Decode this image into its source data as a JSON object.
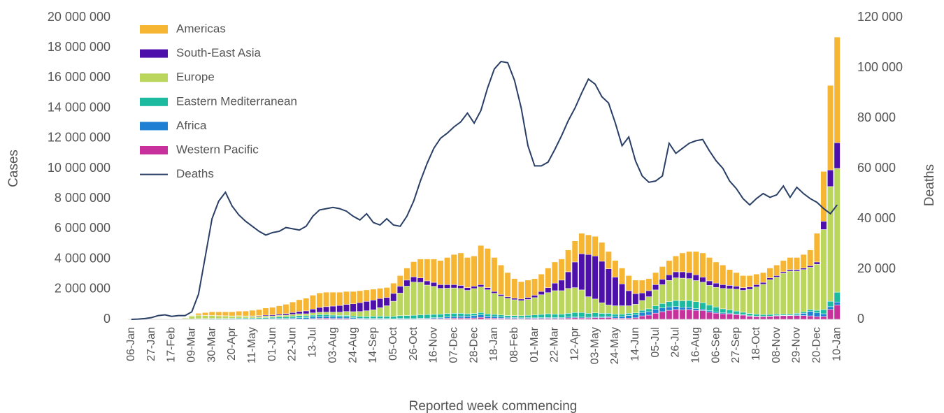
{
  "chart_data": {
    "type": "bar",
    "x_label": "Reported week commencing",
    "y_label": "Cases",
    "y2_label": "Deaths",
    "legend": "upper left",
    "categories": [
      "06-Jan",
      null,
      null,
      "27-Jan",
      null,
      null,
      "17-Feb",
      null,
      null,
      "09-Mar",
      null,
      null,
      "30-Mar",
      null,
      null,
      "20-Apr",
      null,
      null,
      "11-May",
      null,
      null,
      "01-Jun",
      null,
      null,
      "22-Jun",
      null,
      null,
      "13-Jul",
      null,
      null,
      "03-Aug",
      null,
      null,
      "24-Aug",
      null,
      null,
      "14-Sep",
      null,
      null,
      "05-Oct",
      null,
      null,
      "26-Oct",
      null,
      null,
      "16-Nov",
      null,
      null,
      "07-Dec",
      null,
      null,
      "28-Dec",
      null,
      null,
      "18-Jan",
      null,
      null,
      "08-Feb",
      null,
      null,
      "01-Mar",
      null,
      null,
      "22-Mar",
      null,
      null,
      "12-Apr",
      null,
      null,
      "03-May",
      null,
      null,
      "24-May",
      null,
      null,
      "14-Jun",
      null,
      null,
      "05-Jul",
      null,
      null,
      "26-Jul",
      null,
      null,
      "16-Aug",
      null,
      null,
      "06-Sep",
      null,
      null,
      "27-Sep",
      null,
      null,
      "18-Oct",
      null,
      null,
      "08-Nov",
      null,
      null,
      "29-Nov",
      null,
      null,
      "20-Dec",
      null,
      null,
      "10-Jan"
    ],
    "ylim": [
      0,
      20000000
    ],
    "yticks": [
      0,
      {
        "value": 2000000,
        "label": "2 000 000"
      },
      {
        "value": 4000000,
        "label": "4 000 000"
      },
      {
        "value": 6000000,
        "label": "6 000 000"
      },
      {
        "value": 8000000,
        "label": "8 000 000"
      },
      {
        "value": 10000000,
        "label": "10 000 000"
      },
      {
        "value": 12000000,
        "label": "12 000 000"
      },
      {
        "value": 14000000,
        "label": "14 000 000"
      },
      {
        "value": 16000000,
        "label": "16 000 000"
      },
      {
        "value": 18000000,
        "label": "18 000 000"
      },
      {
        "value": 20000000,
        "label": "20 000 000"
      }
    ],
    "y2lim": [
      0,
      120000
    ],
    "y2ticks": [
      0,
      {
        "value": 20000,
        "label": "20 000"
      },
      {
        "value": 40000,
        "label": "40 000"
      },
      {
        "value": 60000,
        "label": "60 000"
      },
      {
        "value": 80000,
        "label": "80 000"
      },
      {
        "value": 100000,
        "label": "100 000"
      },
      {
        "value": 120000,
        "label": "120 000"
      }
    ],
    "series": [
      {
        "name": "Americas",
        "color": "#f6b532",
        "values": [
          0,
          0,
          0,
          0,
          0,
          0,
          0,
          0,
          10000,
          40000,
          120000,
          180000,
          230000,
          250000,
          260000,
          270000,
          300000,
          320000,
          370000,
          400000,
          470000,
          500000,
          560000,
          620000,
          700000,
          780000,
          840000,
          920000,
          960000,
          960000,
          920000,
          880000,
          860000,
          820000,
          800000,
          760000,
          720000,
          680000,
          660000,
          680000,
          700000,
          800000,
          1000000,
          1250000,
          1450000,
          1550000,
          1600000,
          1800000,
          2000000,
          2150000,
          2000000,
          2000000,
          2600000,
          2600000,
          2250000,
          1950000,
          1600000,
          1300000,
          1150000,
          1150000,
          1100000,
          1150000,
          1300000,
          1400000,
          1400000,
          1450000,
          1400000,
          1350000,
          1300000,
          1300000,
          1250000,
          1150000,
          1100000,
          1050000,
          1000000,
          900000,
          850000,
          800000,
          800000,
          850000,
          950000,
          1050000,
          1250000,
          1400000,
          1550000,
          1600000,
          1550000,
          1400000,
          1300000,
          1050000,
          900000,
          800000,
          750000,
          700000,
          650000,
          650000,
          700000,
          750000,
          800000,
          800000,
          900000,
          1050000,
          1900000,
          3300000,
          5600000,
          7000000
        ]
      },
      {
        "name": "South-East Asia",
        "color": "#4d10ab",
        "values": [
          0,
          0,
          0,
          0,
          0,
          0,
          0,
          0,
          0,
          0,
          5000,
          10000,
          10000,
          15000,
          15000,
          20000,
          25000,
          30000,
          40000,
          50000,
          60000,
          70000,
          80000,
          100000,
          120000,
          150000,
          190000,
          250000,
          320000,
          360000,
          400000,
          440000,
          470000,
          520000,
          580000,
          620000,
          650000,
          610000,
          550000,
          520000,
          460000,
          400000,
          350000,
          300000,
          280000,
          260000,
          250000,
          240000,
          220000,
          200000,
          180000,
          160000,
          150000,
          140000,
          120000,
          110000,
          100000,
          100000,
          110000,
          130000,
          160000,
          220000,
          330000,
          500000,
          700000,
          1100000,
          1700000,
          2400000,
          2800000,
          2850000,
          2750000,
          2400000,
          1900000,
          1450000,
          1000000,
          700000,
          500000,
          400000,
          350000,
          350000,
          370000,
          400000,
          420000,
          400000,
          380000,
          340000,
          300000,
          280000,
          250000,
          220000,
          200000,
          180000,
          160000,
          150000,
          130000,
          120000,
          100000,
          100000,
          100000,
          100000,
          100000,
          100000,
          150000,
          550000,
          1100000,
          1700000
        ]
      },
      {
        "name": "Europe",
        "color": "#bad65c",
        "values": [
          0,
          0,
          0,
          0,
          0,
          0,
          0,
          5000,
          60000,
          180000,
          230000,
          210000,
          200000,
          180000,
          160000,
          140000,
          130000,
          110000,
          100000,
          100000,
          100000,
          90000,
          100000,
          110000,
          120000,
          130000,
          140000,
          150000,
          160000,
          170000,
          200000,
          220000,
          260000,
          290000,
          320000,
          380000,
          430000,
          560000,
          700000,
          1000000,
          1500000,
          1950000,
          2200000,
          2150000,
          1950000,
          1860000,
          1700000,
          1680000,
          1680000,
          1650000,
          1550000,
          1650000,
          1700000,
          1600000,
          1400000,
          1250000,
          1150000,
          1050000,
          1000000,
          1050000,
          1150000,
          1300000,
          1400000,
          1550000,
          1550000,
          1650000,
          1650000,
          1500000,
          1100000,
          920000,
          700000,
          550000,
          550000,
          550000,
          500000,
          570000,
          650000,
          800000,
          1050000,
          1250000,
          1400000,
          1500000,
          1500000,
          1450000,
          1400000,
          1350000,
          1300000,
          1300000,
          1350000,
          1400000,
          1450000,
          1450000,
          1600000,
          1800000,
          2000000,
          2300000,
          2450000,
          2700000,
          2850000,
          2800000,
          2800000,
          2800000,
          3050000,
          5300000,
          7600000,
          8200000
        ]
      },
      {
        "name": "Eastern Mediterranean",
        "color": "#1cbba0",
        "values": [
          0,
          0,
          0,
          0,
          0,
          0,
          0,
          5000,
          20000,
          20000,
          25000,
          30000,
          40000,
          40000,
          45000,
          50000,
          60000,
          65000,
          65000,
          70000,
          80000,
          90000,
          100000,
          110000,
          120000,
          130000,
          120000,
          120000,
          120000,
          110000,
          110000,
          100000,
          110000,
          110000,
          120000,
          130000,
          140000,
          150000,
          150000,
          160000,
          180000,
          200000,
          220000,
          230000,
          240000,
          220000,
          230000,
          220000,
          220000,
          190000,
          160000,
          150000,
          150000,
          150000,
          140000,
          130000,
          120000,
          130000,
          140000,
          160000,
          190000,
          220000,
          250000,
          240000,
          230000,
          250000,
          290000,
          300000,
          260000,
          260000,
          220000,
          190000,
          170000,
          150000,
          150000,
          140000,
          150000,
          190000,
          240000,
          290000,
          350000,
          400000,
          430000,
          460000,
          460000,
          430000,
          380000,
          340000,
          270000,
          220000,
          190000,
          160000,
          150000,
          140000,
          120000,
          110000,
          100000,
          90000,
          90000,
          90000,
          100000,
          120000,
          170000,
          280000,
          360000,
          650000
        ]
      },
      {
        "name": "Africa",
        "color": "#1f7fd2",
        "values": [
          0,
          0,
          0,
          0,
          0,
          0,
          0,
          0,
          0,
          0,
          5000,
          5000,
          5000,
          5000,
          10000,
          10000,
          15000,
          15000,
          15000,
          20000,
          25000,
          30000,
          40000,
          40000,
          60000,
          80000,
          90000,
          110000,
          120000,
          120000,
          110000,
          100000,
          90000,
          70000,
          50000,
          40000,
          40000,
          40000,
          30000,
          30000,
          40000,
          40000,
          40000,
          40000,
          50000,
          60000,
          70000,
          90000,
          100000,
          120000,
          130000,
          150000,
          170000,
          130000,
          110000,
          90000,
          70000,
          60000,
          50000,
          50000,
          40000,
          50000,
          50000,
          50000,
          50000,
          60000,
          60000,
          60000,
          50000,
          60000,
          70000,
          90000,
          100000,
          130000,
          170000,
          190000,
          220000,
          230000,
          250000,
          250000,
          230000,
          200000,
          170000,
          140000,
          120000,
          100000,
          90000,
          70000,
          60000,
          50000,
          40000,
          30000,
          30000,
          30000,
          20000,
          20000,
          20000,
          20000,
          20000,
          60000,
          150000,
          300000,
          250000,
          180000,
          180000,
          200000
        ]
      },
      {
        "name": "Western Pacific",
        "color": "#c8309b",
        "values": [
          0,
          0,
          5000,
          15000,
          25000,
          20000,
          20000,
          10000,
          10000,
          10000,
          15000,
          15000,
          15000,
          10000,
          10000,
          10000,
          10000,
          10000,
          10000,
          10000,
          15000,
          20000,
          20000,
          20000,
          30000,
          30000,
          20000,
          50000,
          70000,
          80000,
          60000,
          60000,
          60000,
          40000,
          30000,
          20000,
          20000,
          20000,
          20000,
          10000,
          20000,
          10000,
          10000,
          30000,
          30000,
          50000,
          50000,
          70000,
          80000,
          90000,
          80000,
          90000,
          130000,
          80000,
          80000,
          70000,
          60000,
          60000,
          50000,
          60000,
          60000,
          60000,
          70000,
          60000,
          70000,
          90000,
          100000,
          90000,
          90000,
          110000,
          110000,
          120000,
          80000,
          70000,
          80000,
          100000,
          230000,
          280000,
          410000,
          510000,
          600000,
          650000,
          630000,
          650000,
          590000,
          580000,
          480000,
          410000,
          370000,
          360000,
          320000,
          280000,
          210000,
          180000,
          180000,
          200000,
          230000,
          240000,
          240000,
          250000,
          250000,
          230000,
          180000,
          190000,
          660000,
          950000
        ]
      },
      {
        "name": "Deaths",
        "color": "#2a3f66",
        "type": "line",
        "axis": "y2",
        "values": [
          0,
          100,
          300,
          700,
          1500,
          1800,
          1200,
          1500,
          1500,
          3000,
          10000,
          25000,
          40000,
          47000,
          50500,
          45000,
          41500,
          39000,
          37000,
          35000,
          33500,
          34500,
          35000,
          36500,
          36000,
          35500,
          37000,
          41000,
          43500,
          44000,
          44500,
          44000,
          43000,
          41000,
          39500,
          42000,
          38500,
          37500,
          40000,
          37500,
          37000,
          41000,
          47000,
          55000,
          62000,
          68000,
          72000,
          74000,
          76500,
          78500,
          82000,
          78000,
          83000,
          92000,
          99500,
          102500,
          102000,
          95000,
          84000,
          69000,
          61000,
          61000,
          62500,
          67500,
          73000,
          79000,
          84000,
          90000,
          95500,
          93500,
          88500,
          86000,
          78000,
          69000,
          72500,
          63000,
          57000,
          54500,
          55000,
          57000,
          70000,
          66000,
          68000,
          70000,
          71000,
          71500,
          67000,
          63000,
          60000,
          55000,
          52000,
          48000,
          45500,
          48000,
          50000,
          48500,
          49500,
          53000,
          48500,
          52500,
          50000,
          48000,
          46500,
          44000,
          42000,
          45500
        ]
      }
    ]
  }
}
